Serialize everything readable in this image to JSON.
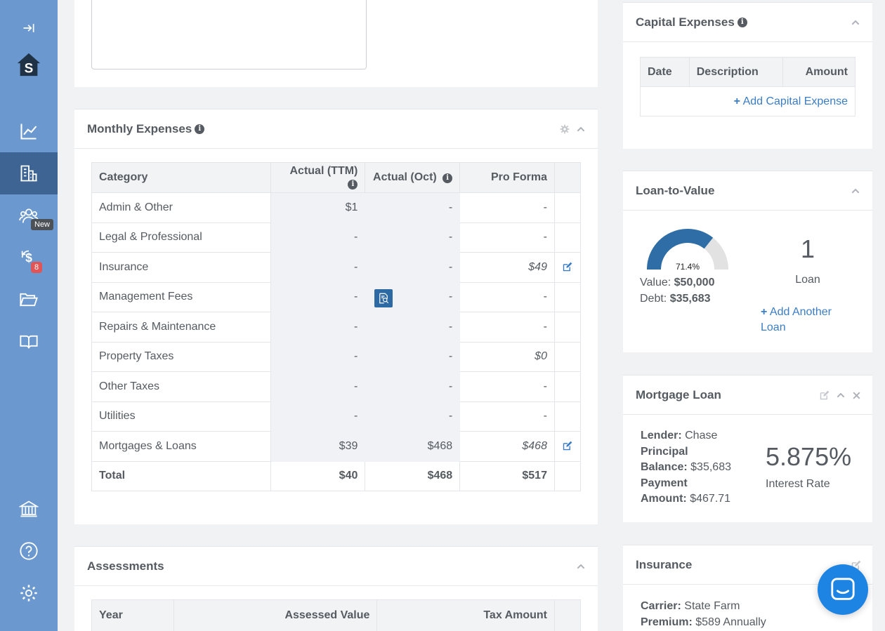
{
  "sidebar": {
    "items": [
      {
        "name": "collapse",
        "icon": "collapse-arrow-icon"
      },
      {
        "name": "logo",
        "icon": "house-logo-icon",
        "letter": "S"
      },
      {
        "name": "analytics",
        "icon": "line-chart-icon"
      },
      {
        "name": "properties",
        "icon": "buildings-icon"
      },
      {
        "name": "tenants",
        "icon": "people-icon",
        "badge": "New"
      },
      {
        "name": "finance",
        "icon": "dollar-cycle-icon",
        "badge": "8"
      },
      {
        "name": "documents",
        "icon": "folder-open-icon"
      },
      {
        "name": "guides",
        "icon": "book-icon"
      },
      {
        "name": "bank",
        "icon": "bank-icon"
      },
      {
        "name": "help",
        "icon": "question-circle-icon"
      },
      {
        "name": "settings",
        "icon": "gear-icon"
      }
    ]
  },
  "monthly_expenses": {
    "title": "Monthly Expenses",
    "headers": [
      "Category",
      "Actual (TTM)",
      "Actual (Oct)",
      "Pro Forma"
    ],
    "rows": [
      {
        "category": "Admin & Other",
        "ttm": "$1",
        "oct": "-",
        "pro_forma": "-"
      },
      {
        "category": "Legal & Professional",
        "ttm": "-",
        "oct": "-",
        "pro_forma": "-"
      },
      {
        "category": "Insurance",
        "ttm": "-",
        "oct": "-",
        "pro_forma": "$49"
      },
      {
        "category": "Management Fees",
        "ttm": "-",
        "oct": "-",
        "pro_forma": "-"
      },
      {
        "category": "Repairs & Maintenance",
        "ttm": "-",
        "oct": "-",
        "pro_forma": "-"
      },
      {
        "category": "Property Taxes",
        "ttm": "-",
        "oct": "-",
        "pro_forma": "$0"
      },
      {
        "category": "Other Taxes",
        "ttm": "-",
        "oct": "-",
        "pro_forma": "-"
      },
      {
        "category": "Utilities",
        "ttm": "-",
        "oct": "-",
        "pro_forma": "-"
      },
      {
        "category": "Mortgages & Loans",
        "ttm": "$39",
        "oct": "$468",
        "pro_forma": "$468"
      }
    ],
    "total": {
      "label": "Total",
      "ttm": "$40",
      "oct": "$468",
      "pro_forma": "$517"
    }
  },
  "assessments": {
    "title": "Assessments",
    "headers": [
      "Year",
      "Assessed Value",
      "Tax Amount"
    ]
  },
  "capital_expenses": {
    "title": "Capital Expenses",
    "headers": [
      "Date",
      "Description",
      "Amount"
    ],
    "add_label": "Add Capital Expense"
  },
  "ltv": {
    "title": "Loan-to-Value",
    "percent": 71.4,
    "percent_label": "71.4%",
    "value_label": "Value:",
    "value": "$50,000",
    "debt_label": "Debt:",
    "debt": "$35,683",
    "loan_count": "1",
    "loan_count_label": "Loan",
    "add_label": "Add Another Loan",
    "gauge_color": "#2e6da6",
    "gauge_bg": "#e2e2e2"
  },
  "mortgage": {
    "title": "Mortgage Loan",
    "lender_label": "Lender:",
    "lender": "Chase",
    "principal_label_1": "Principal",
    "principal_label_2": "Balance:",
    "principal": "$35,683",
    "payment_label_1": "Payment",
    "payment_label_2": "Amount:",
    "payment": "$467.71",
    "rate": "5.875%",
    "rate_label": "Interest Rate"
  },
  "insurance": {
    "title": "Insurance",
    "carrier_label": "Carrier:",
    "carrier": "State Farm",
    "premium_label": "Premium:",
    "premium": "$589 Annually"
  }
}
